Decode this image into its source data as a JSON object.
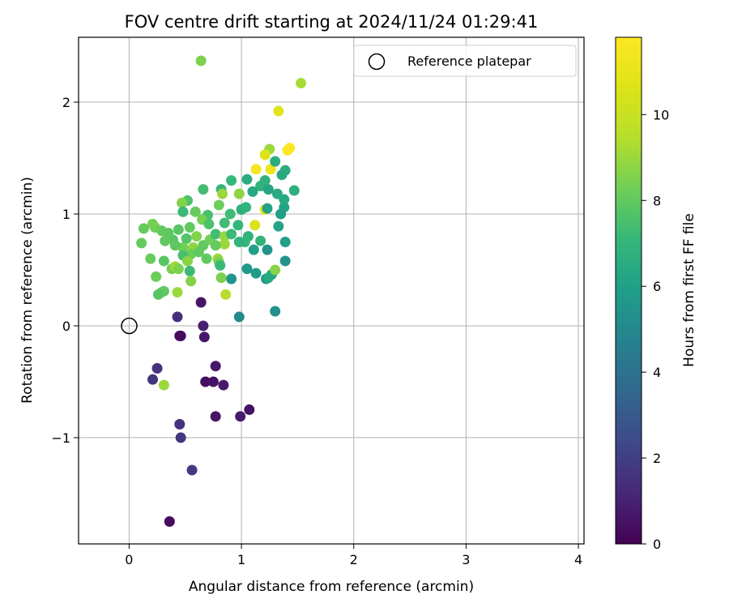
{
  "chart_data": {
    "type": "scatter",
    "title": "FOV centre drift starting at 2024/11/24 01:29:41",
    "xlabel": "Angular distance from reference (arcmin)",
    "ylabel": "Rotation from reference (arcmin)",
    "xlim": [
      -0.45,
      4.05
    ],
    "ylim": [
      -1.95,
      2.58
    ],
    "xticks": [
      0,
      1,
      2,
      3,
      4
    ],
    "yticks": [
      -1,
      0,
      1,
      2
    ],
    "grid": true,
    "legend": {
      "position": "top-right",
      "entries": [
        "Reference platepar"
      ]
    },
    "reference_point": {
      "x": 0,
      "y": 0,
      "label": "Reference platepar"
    },
    "colorbar": {
      "label": "Hours from first FF file",
      "range": [
        0,
        11.8
      ],
      "ticks": [
        0,
        2,
        4,
        6,
        8,
        10
      ],
      "colormap": "viridis"
    },
    "points": [
      [
        0.64,
        2.37,
        8.5
      ],
      [
        1.53,
        2.17,
        9.2
      ],
      [
        1.33,
        1.92,
        10.8
      ],
      [
        1.43,
        1.59,
        11.8
      ],
      [
        1.41,
        1.57,
        11.8
      ],
      [
        1.25,
        1.58,
        9.0
      ],
      [
        1.21,
        1.53,
        10.6
      ],
      [
        1.13,
        1.4,
        11.5
      ],
      [
        1.26,
        1.4,
        11.2
      ],
      [
        1.36,
        1.35,
        6.4
      ],
      [
        1.39,
        1.39,
        6.5
      ],
      [
        1.3,
        1.47,
        6.6
      ],
      [
        1.17,
        1.25,
        6.9
      ],
      [
        1.21,
        1.3,
        6.8
      ],
      [
        1.05,
        1.31,
        6.6
      ],
      [
        1.1,
        1.2,
        6.4
      ],
      [
        1.24,
        1.22,
        6.3
      ],
      [
        1.47,
        1.21,
        6.7
      ],
      [
        1.32,
        1.18,
        6.5
      ],
      [
        0.98,
        1.18,
        8.8
      ],
      [
        0.82,
        1.22,
        7.0
      ],
      [
        0.83,
        1.18,
        9.0
      ],
      [
        0.91,
        1.3,
        7.1
      ],
      [
        0.66,
        1.22,
        7.4
      ],
      [
        0.52,
        1.12,
        7.6
      ],
      [
        0.47,
        1.1,
        8.6
      ],
      [
        0.8,
        1.08,
        8.2
      ],
      [
        0.59,
        1.02,
        8.1
      ],
      [
        0.48,
        1.02,
        7.2
      ],
      [
        0.7,
        0.99,
        7.5
      ],
      [
        0.65,
        0.95,
        8.4
      ],
      [
        0.9,
        1.0,
        7.3
      ],
      [
        1.0,
        1.04,
        6.7
      ],
      [
        1.04,
        1.06,
        6.9
      ],
      [
        1.21,
        1.04,
        11.0
      ],
      [
        1.23,
        1.05,
        6.1
      ],
      [
        1.38,
        1.06,
        6.2
      ],
      [
        1.35,
        1.0,
        6.0
      ],
      [
        1.38,
        1.13,
        6.4
      ],
      [
        1.12,
        0.9,
        10.5
      ],
      [
        1.33,
        0.89,
        6.2
      ],
      [
        0.97,
        0.9,
        7.0
      ],
      [
        0.85,
        0.92,
        7.3
      ],
      [
        0.71,
        0.91,
        7.6
      ],
      [
        0.54,
        0.88,
        8.0
      ],
      [
        0.44,
        0.86,
        7.8
      ],
      [
        0.35,
        0.83,
        7.9
      ],
      [
        0.29,
        0.85,
        8.0
      ],
      [
        0.23,
        0.88,
        8.2
      ],
      [
        0.21,
        0.91,
        8.4
      ],
      [
        0.13,
        0.87,
        8.1
      ],
      [
        0.39,
        0.77,
        7.8
      ],
      [
        0.32,
        0.76,
        8.0
      ],
      [
        0.51,
        0.78,
        7.7
      ],
      [
        0.6,
        0.8,
        8.6
      ],
      [
        0.72,
        0.77,
        8.3
      ],
      [
        0.77,
        0.82,
        7.4
      ],
      [
        0.85,
        0.8,
        8.9
      ],
      [
        0.91,
        0.82,
        7.2
      ],
      [
        1.06,
        0.8,
        6.8
      ],
      [
        1.17,
        0.76,
        6.9
      ],
      [
        1.39,
        0.75,
        6.0
      ],
      [
        1.03,
        0.75,
        7.0
      ],
      [
        0.98,
        0.75,
        6.9
      ],
      [
        0.85,
        0.73,
        9.0
      ],
      [
        0.77,
        0.72,
        8.1
      ],
      [
        0.66,
        0.72,
        8.0
      ],
      [
        0.57,
        0.7,
        8.8
      ],
      [
        0.48,
        0.7,
        8.3
      ],
      [
        0.41,
        0.72,
        7.9
      ],
      [
        0.11,
        0.74,
        8.1
      ],
      [
        0.55,
        0.64,
        8.2
      ],
      [
        0.62,
        0.66,
        8.0
      ],
      [
        0.48,
        0.63,
        7.5
      ],
      [
        0.52,
        0.58,
        8.7
      ],
      [
        0.69,
        0.6,
        8.0
      ],
      [
        0.79,
        0.6,
        9.0
      ],
      [
        0.8,
        0.57,
        8.4
      ],
      [
        0.81,
        0.54,
        7.2
      ],
      [
        0.19,
        0.6,
        8.1
      ],
      [
        0.31,
        0.58,
        7.8
      ],
      [
        0.38,
        0.51,
        8.3
      ],
      [
        0.41,
        0.53,
        9.1
      ],
      [
        0.44,
        0.51,
        8.5
      ],
      [
        0.54,
        0.49,
        7.2
      ],
      [
        1.11,
        0.68,
        6.0
      ],
      [
        1.23,
        0.68,
        5.5
      ],
      [
        1.05,
        0.51,
        5.7
      ],
      [
        1.13,
        0.47,
        5.8
      ],
      [
        1.27,
        0.46,
        6.3
      ],
      [
        1.3,
        0.5,
        8.7
      ],
      [
        1.39,
        0.58,
        5.5
      ],
      [
        1.22,
        0.42,
        5.6
      ],
      [
        1.24,
        0.43,
        6.4
      ],
      [
        0.91,
        0.42,
        5.5
      ],
      [
        0.82,
        0.43,
        8.5
      ],
      [
        0.55,
        0.4,
        8.6
      ],
      [
        0.24,
        0.44,
        8.2
      ],
      [
        0.29,
        0.3,
        8.1
      ],
      [
        0.31,
        0.31,
        8.0
      ],
      [
        0.26,
        0.28,
        7.8
      ],
      [
        0.43,
        0.3,
        9.0
      ],
      [
        0.86,
        0.28,
        9.5
      ],
      [
        0.98,
        0.08,
        5.0
      ],
      [
        1.3,
        0.13,
        5.3
      ],
      [
        0.64,
        0.21,
        0.6
      ],
      [
        0.43,
        0.08,
        1.4
      ],
      [
        0.66,
        0.0,
        0.9
      ],
      [
        0.45,
        -0.09,
        0.2
      ],
      [
        0.46,
        -0.09,
        0.3
      ],
      [
        0.67,
        -0.1,
        0.7
      ],
      [
        0.25,
        -0.38,
        1.5
      ],
      [
        0.21,
        -0.48,
        1.6
      ],
      [
        0.31,
        -0.53,
        9.0
      ],
      [
        0.68,
        -0.5,
        0.4
      ],
      [
        0.75,
        -0.5,
        0.5
      ],
      [
        0.84,
        -0.53,
        0.8
      ],
      [
        0.77,
        -0.36,
        0.7
      ],
      [
        0.77,
        -0.81,
        0.6
      ],
      [
        0.99,
        -0.81,
        0.8
      ],
      [
        1.07,
        -0.75,
        0.5
      ],
      [
        0.45,
        -0.88,
        1.5
      ],
      [
        0.46,
        -1.0,
        1.7
      ],
      [
        0.56,
        -1.29,
        1.8
      ],
      [
        0.36,
        -1.75,
        0.3
      ]
    ]
  }
}
